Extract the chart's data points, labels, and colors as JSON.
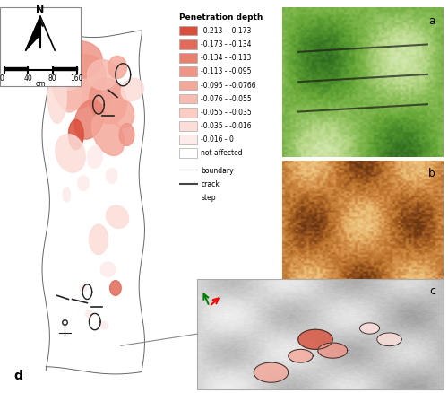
{
  "legend_title": "Penetration depth",
  "legend_entries": [
    {
      "label": "-0.213 - -0.173",
      "color": "#d94f3b"
    },
    {
      "label": "-0.173 - -0.134",
      "color": "#e06b5a"
    },
    {
      "label": "-0.134 - -0.113",
      "color": "#e88070"
    },
    {
      "label": "-0.113 - -0.095",
      "color": "#ef9486"
    },
    {
      "label": "-0.095 - -0.0766",
      "color": "#f4a89a"
    },
    {
      "label": "-0.076 - -0.055",
      "color": "#f7bbb0"
    },
    {
      "label": "-0.055 - -0.035",
      "color": "#faccc4"
    },
    {
      "label": "-0.035 - -0.016",
      "color": "#fcddd8"
    },
    {
      "label": "-0.016 - 0",
      "color": "#fdecea"
    },
    {
      "label": "not affected",
      "color": "#ffffff"
    }
  ],
  "legend_line_entries": [
    {
      "label": "boundary",
      "linestyle": "-",
      "color": "#888888",
      "linewidth": 0.8
    },
    {
      "label": "crack",
      "linestyle": "-",
      "color": "#444444",
      "linewidth": 1.5
    },
    {
      "label": "step",
      "linestyle": "--",
      "color": "#444444",
      "linewidth": 1.0
    }
  ],
  "panel_labels": [
    "a",
    "b",
    "c",
    "d"
  ],
  "background_color": "#ffffff",
  "figure_width": 5.0,
  "figure_height": 4.39,
  "dpi": 100
}
